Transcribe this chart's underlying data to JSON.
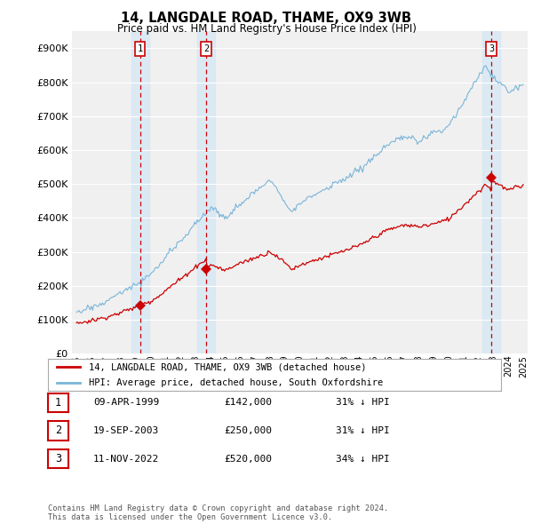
{
  "title": "14, LANGDALE ROAD, THAME, OX9 3WB",
  "subtitle": "Price paid vs. HM Land Registry's House Price Index (HPI)",
  "ytick_vals": [
    0,
    100000,
    200000,
    300000,
    400000,
    500000,
    600000,
    700000,
    800000,
    900000
  ],
  "ylim": [
    0,
    950000
  ],
  "xlim_start": 1994.7,
  "xlim_end": 2025.3,
  "hpi_color": "#7ab5d9",
  "price_color": "#cc0000",
  "vline_color": "#cc0000",
  "transaction_dates": [
    1999.27,
    2003.72,
    2022.86
  ],
  "transaction_prices": [
    142000,
    250000,
    520000
  ],
  "transaction_labels": [
    "1",
    "2",
    "3"
  ],
  "legend_label_red": "14, LANGDALE ROAD, THAME, OX9 3WB (detached house)",
  "legend_label_blue": "HPI: Average price, detached house, South Oxfordshire",
  "table_rows": [
    {
      "num": "1",
      "date": "09-APR-1999",
      "price": "£142,000",
      "hpi": "31% ↓ HPI"
    },
    {
      "num": "2",
      "date": "19-SEP-2003",
      "price": "£250,000",
      "hpi": "31% ↓ HPI"
    },
    {
      "num": "3",
      "date": "11-NOV-2022",
      "price": "£520,000",
      "hpi": "34% ↓ HPI"
    }
  ],
  "footnote": "Contains HM Land Registry data © Crown copyright and database right 2024.\nThis data is licensed under the Open Government Licence v3.0.",
  "background_color": "#ffffff",
  "plot_bg_color": "#f0f0f0",
  "grid_color": "#ffffff",
  "shade_color": "#d6e8f5"
}
